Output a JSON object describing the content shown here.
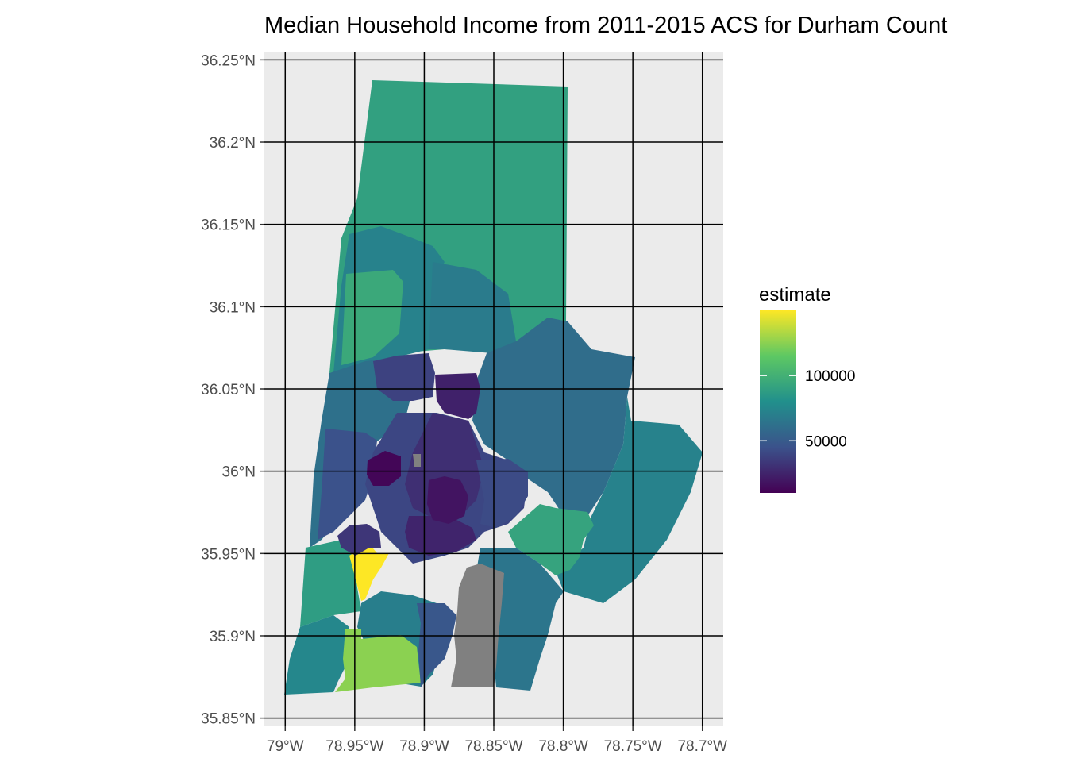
{
  "title": "Median Household Income from 2011-2015 ACS for Durham Count",
  "x_axis": {
    "ticks": [
      {
        "value": -79.0,
        "label": "79°W"
      },
      {
        "value": -78.95,
        "label": "78.95°W"
      },
      {
        "value": -78.9,
        "label": "78.9°W"
      },
      {
        "value": -78.85,
        "label": "78.85°W"
      },
      {
        "value": -78.8,
        "label": "78.8°W"
      },
      {
        "value": -78.75,
        "label": "78.75°W"
      },
      {
        "value": -78.7,
        "label": "78.7°W"
      }
    ]
  },
  "y_axis": {
    "ticks": [
      {
        "value": 35.85,
        "label": "35.85°N"
      },
      {
        "value": 35.9,
        "label": "35.9°N"
      },
      {
        "value": 35.95,
        "label": "35.95°N"
      },
      {
        "value": 36.0,
        "label": "36°N"
      },
      {
        "value": 36.05,
        "label": "36.05°N"
      },
      {
        "value": 36.1,
        "label": "36.1°N"
      },
      {
        "value": 36.15,
        "label": "36.15°N"
      },
      {
        "value": 36.2,
        "label": "36.2°N"
      },
      {
        "value": 36.25,
        "label": "36.25°N"
      }
    ]
  },
  "legend": {
    "title": "estimate",
    "labels": [
      {
        "value": 100000,
        "label": "100000"
      },
      {
        "value": 50000,
        "label": "50000"
      }
    ],
    "colors": [
      "#440154",
      "#3b528b",
      "#21908c",
      "#5dc863",
      "#fde725"
    ]
  },
  "colors": {
    "panel_background": "#ebebeb",
    "grid": "#000000",
    "na_value": "#808080"
  },
  "chart_data": {
    "type": "choropleth",
    "title": "Median Household Income from 2011-2015 ACS for Durham Count",
    "fill_variable": "estimate",
    "color_scale": "viridis",
    "scale_limits": [
      10000,
      150000
    ],
    "xlim": [
      -79.015,
      -78.685
    ],
    "ylim": [
      35.845,
      36.255
    ],
    "grid": true,
    "legend_position": "right",
    "regions": [
      {
        "id": "north-rural",
        "estimate": 90000
      },
      {
        "id": "northwest-band",
        "estimate": 72000
      },
      {
        "id": "north-mid",
        "estimate": 68000
      },
      {
        "id": "northwest-highland",
        "estimate": 95000
      },
      {
        "id": "west-central",
        "estimate": 62000
      },
      {
        "id": "east-large",
        "estimate": 60000
      },
      {
        "id": "far-east",
        "estimate": 72000
      },
      {
        "id": "southwest-green",
        "estimate": 88000
      },
      {
        "id": "southwest-edge",
        "estimate": 75000
      },
      {
        "id": "south-central-teal",
        "estimate": 70000
      },
      {
        "id": "south-lime",
        "estimate": 125000
      },
      {
        "id": "west-yellow",
        "estimate": 150000
      },
      {
        "id": "southeast-green",
        "estimate": 92000
      },
      {
        "id": "rtp-south",
        "estimate": 65000
      },
      {
        "id": "central-blue-1",
        "estimate": 45000
      },
      {
        "id": "central-blue-2",
        "estimate": 40000
      },
      {
        "id": "central-purple-1",
        "estimate": 30000
      },
      {
        "id": "central-purple-2",
        "estimate": 25000
      },
      {
        "id": "central-darkest",
        "estimate": 12000
      },
      {
        "id": "downtown-dark",
        "estimate": 18000
      },
      {
        "id": "north-purple",
        "estimate": 24000
      },
      {
        "id": "east-mid-blue",
        "estimate": 42000
      },
      {
        "id": "south-mid-blue",
        "estimate": 48000
      },
      {
        "id": "southwest-purple",
        "estimate": 33000
      },
      {
        "id": "north-indigo",
        "estimate": 38000
      },
      {
        "id": "rtp-gray",
        "estimate": null
      },
      {
        "id": "small-gray",
        "estimate": null
      }
    ]
  }
}
